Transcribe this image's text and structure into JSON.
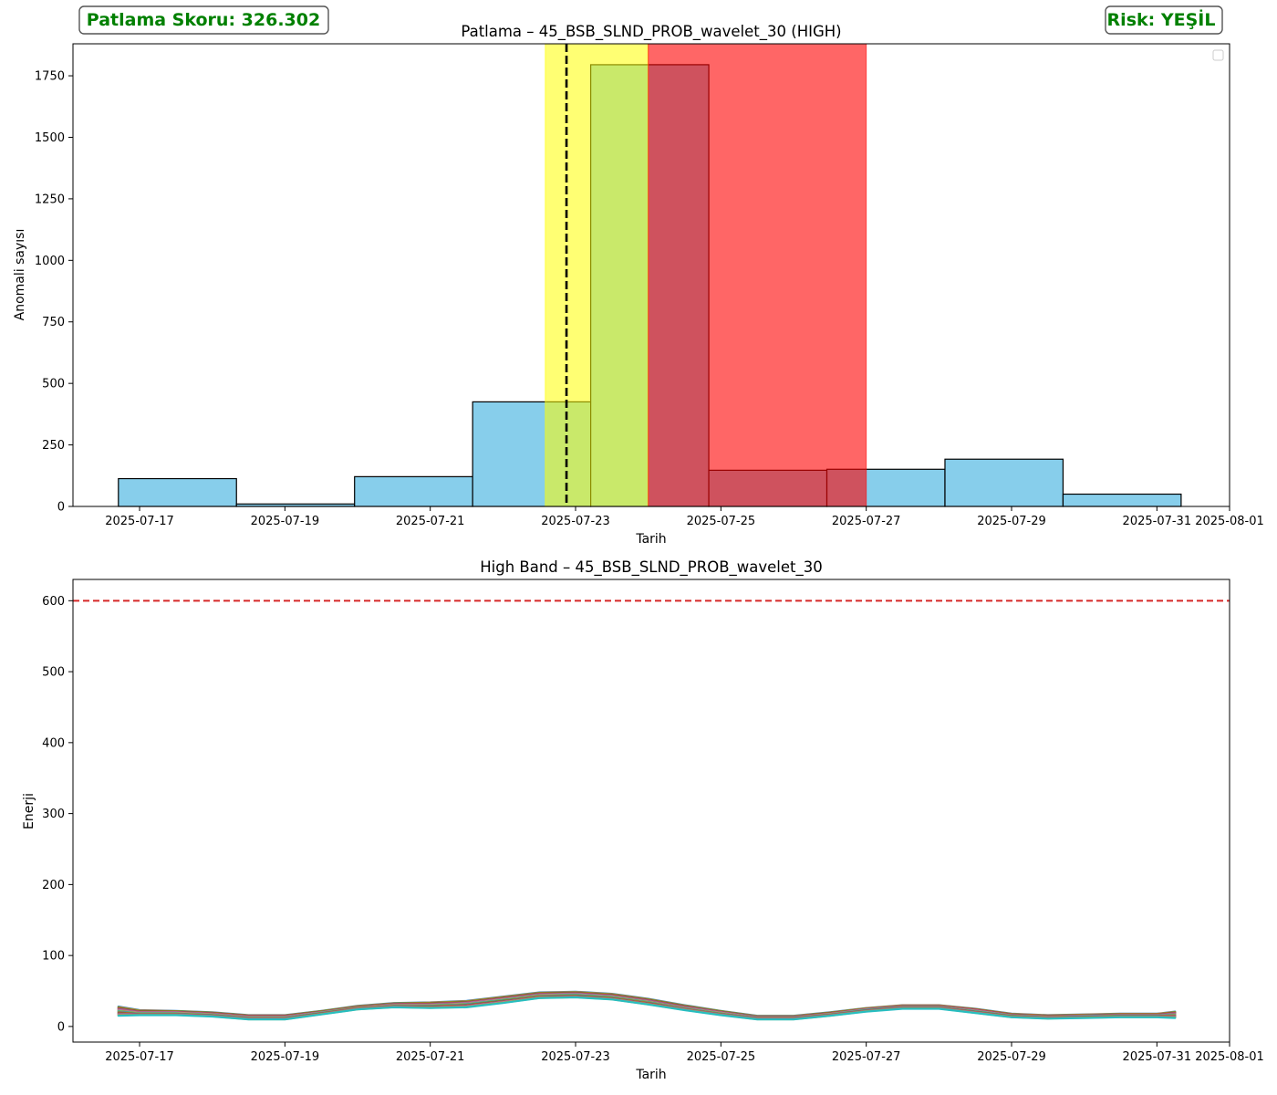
{
  "badges": {
    "score": {
      "text": "Patlama Skoru: 326.302",
      "color": "#008000"
    },
    "risk": {
      "text": "Risk: YEŞİL",
      "color": "#008000"
    }
  },
  "colors": {
    "bar_fill": "#87ceeb",
    "bar_edge": "#000000",
    "yellow_span": "#ffff00",
    "red_span": "#ff0000",
    "marker_line": "#000000",
    "threshold_line": "#d62728",
    "band_line_colors": [
      "#1f77b4",
      "#ff7f0e",
      "#2ca02c",
      "#d62728",
      "#9467bd",
      "#8c564b",
      "#e377c2",
      "#7f7f7f",
      "#bcbd22",
      "#17becf"
    ]
  },
  "chart_data": [
    {
      "type": "bar",
      "title": "Patlama – 45_BSB_SLND_PROB_wavelet_30 (HIGH)",
      "xlabel": "Tarih",
      "ylabel": "Anomali sayısı",
      "x_ticks": [
        "2025-07-17",
        "2025-07-19",
        "2025-07-21",
        "2025-07-23",
        "2025-07-25",
        "2025-07-27",
        "2025-07-29",
        "2025-07-31",
        "2025-08-01"
      ],
      "xlim": [
        "2025-07-16 02:00",
        "2025-08-01 00:00"
      ],
      "ylim": [
        0,
        1880
      ],
      "y_ticks": [
        "0",
        "250",
        "500",
        "750",
        "1000",
        "1250",
        "1500",
        "1750"
      ],
      "bins": [
        {
          "start": "2025-07-16 17:00",
          "end": "2025-07-18 08:00",
          "value": 113
        },
        {
          "start": "2025-07-18 08:00",
          "end": "2025-07-19 23:00",
          "value": 10
        },
        {
          "start": "2025-07-19 23:00",
          "end": "2025-07-21 14:00",
          "value": 121
        },
        {
          "start": "2025-07-21 14:00",
          "end": "2025-07-23 05:00",
          "value": 425
        },
        {
          "start": "2025-07-23 05:00",
          "end": "2025-07-24 20:00",
          "value": 1795
        },
        {
          "start": "2025-07-24 20:00",
          "end": "2025-07-26 11:00",
          "value": 147
        },
        {
          "start": "2025-07-26 11:00",
          "end": "2025-07-28 02:00",
          "value": 151
        },
        {
          "start": "2025-07-28 02:00",
          "end": "2025-07-29 17:00",
          "value": 192
        },
        {
          "start": "2025-07-29 17:00",
          "end": "2025-07-31 08:00",
          "value": 50
        }
      ],
      "spans": [
        {
          "start": "2025-07-22 14:00",
          "end": "2025-07-24 00:00",
          "color": "yellow"
        },
        {
          "start": "2025-07-24 00:00",
          "end": "2025-07-27 00:00",
          "color": "red"
        }
      ],
      "marker_x": "2025-07-22 21:00",
      "legend": "top-right",
      "grid": false
    },
    {
      "type": "line",
      "title": "High Band – 45_BSB_SLND_PROB_wavelet_30",
      "xlabel": "Tarih",
      "ylabel": "Enerji",
      "x_ticks": [
        "2025-07-17",
        "2025-07-19",
        "2025-07-21",
        "2025-07-23",
        "2025-07-25",
        "2025-07-27",
        "2025-07-29",
        "2025-07-31",
        "2025-08-01"
      ],
      "xlim": [
        "2025-07-16 02:00",
        "2025-08-01 00:00"
      ],
      "ylim": [
        -22,
        630
      ],
      "y_ticks": [
        "0",
        "100",
        "200",
        "300",
        "400",
        "500",
        "600"
      ],
      "threshold": 600,
      "x": [
        "2025-07-16 17:00",
        "2025-07-17 00:00",
        "2025-07-17 12:00",
        "2025-07-18 00:00",
        "2025-07-18 12:00",
        "2025-07-19 00:00",
        "2025-07-19 12:00",
        "2025-07-20 00:00",
        "2025-07-20 12:00",
        "2025-07-21 00:00",
        "2025-07-21 12:00",
        "2025-07-22 00:00",
        "2025-07-22 12:00",
        "2025-07-23 00:00",
        "2025-07-23 12:00",
        "2025-07-24 00:00",
        "2025-07-24 12:00",
        "2025-07-25 00:00",
        "2025-07-25 12:00",
        "2025-07-26 00:00",
        "2025-07-26 12:00",
        "2025-07-27 00:00",
        "2025-07-27 12:00",
        "2025-07-28 00:00",
        "2025-07-28 12:00",
        "2025-07-29 00:00",
        "2025-07-29 12:00",
        "2025-07-30 00:00",
        "2025-07-30 12:00",
        "2025-07-31 00:00",
        "2025-07-31 06:00"
      ],
      "series": [
        {
          "values": [
            28,
            23,
            22,
            20,
            16,
            16,
            22,
            29,
            33,
            34,
            36,
            42,
            48,
            49,
            46,
            39,
            30,
            22,
            15,
            15,
            20,
            26,
            30,
            30,
            25,
            18,
            16,
            17,
            18,
            18,
            21
          ]
        },
        {
          "values": [
            24,
            20,
            20,
            18,
            14,
            14,
            20,
            27,
            31,
            31,
            33,
            39,
            45,
            46,
            43,
            36,
            27,
            20,
            13,
            13,
            18,
            24,
            28,
            28,
            23,
            16,
            14,
            15,
            16,
            16,
            18
          ]
        },
        {
          "values": [
            21,
            18,
            18,
            16,
            12,
            12,
            19,
            26,
            29,
            29,
            31,
            37,
            43,
            44,
            41,
            34,
            25,
            18,
            12,
            12,
            17,
            23,
            27,
            27,
            21,
            15,
            13,
            14,
            15,
            15,
            16
          ]
        },
        {
          "values": [
            18,
            17,
            17,
            15,
            11,
            11,
            18,
            25,
            28,
            27,
            29,
            35,
            41,
            42,
            39,
            32,
            24,
            17,
            11,
            11,
            16,
            22,
            26,
            26,
            20,
            14,
            12,
            13,
            14,
            14,
            14
          ]
        },
        {
          "values": [
            15,
            16,
            16,
            14,
            10,
            10,
            17,
            24,
            27,
            26,
            27,
            33,
            40,
            41,
            38,
            31,
            23,
            16,
            10,
            10,
            15,
            21,
            25,
            25,
            19,
            13,
            11,
            12,
            13,
            13,
            12
          ]
        }
      ],
      "grid": false
    }
  ]
}
